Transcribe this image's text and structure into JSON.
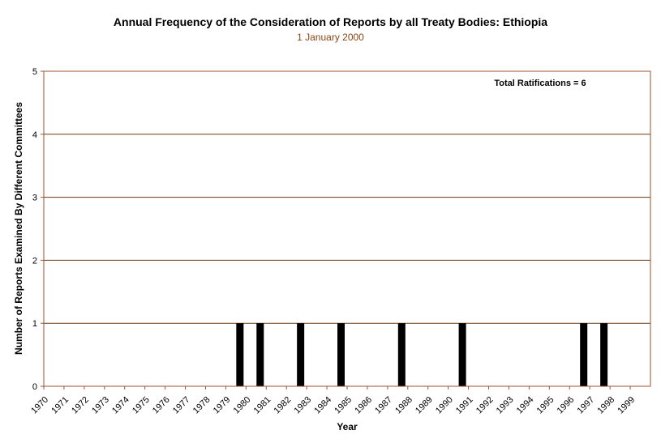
{
  "chart_data": {
    "type": "bar",
    "title": "Annual Frequency of the Consideration of Reports by all Treaty Bodies: Ethiopia",
    "subtitle": "1 January 2000",
    "xlabel": "Year",
    "ylabel": "Number of Reports Examined By Different Committees",
    "annotation": "Total Ratifications = 6",
    "ylim": [
      0,
      5
    ],
    "yticks": [
      "0",
      "1",
      "2",
      "3",
      "4",
      "5"
    ],
    "categories": [
      "1970",
      "1971",
      "1972",
      "1973",
      "1974",
      "1975",
      "1976",
      "1977",
      "1978",
      "1979",
      "1980",
      "1981",
      "1982",
      "1983",
      "1984",
      "1985",
      "1986",
      "1987",
      "1988",
      "1989",
      "1990",
      "1991",
      "1992",
      "1993",
      "1994",
      "1995",
      "1996",
      "1997",
      "1998",
      "1999"
    ],
    "values": [
      0,
      0,
      0,
      0,
      0,
      0,
      0,
      0,
      0,
      1,
      1,
      0,
      1,
      0,
      1,
      0,
      0,
      1,
      0,
      0,
      1,
      0,
      0,
      0,
      0,
      0,
      1,
      1,
      0,
      0
    ],
    "grid": true,
    "colors": {
      "frame": "#a0522d",
      "gridline": "#6b3a10",
      "bar": "#000000",
      "tick_text": "#000000",
      "subtitle": "#8b4513"
    }
  }
}
